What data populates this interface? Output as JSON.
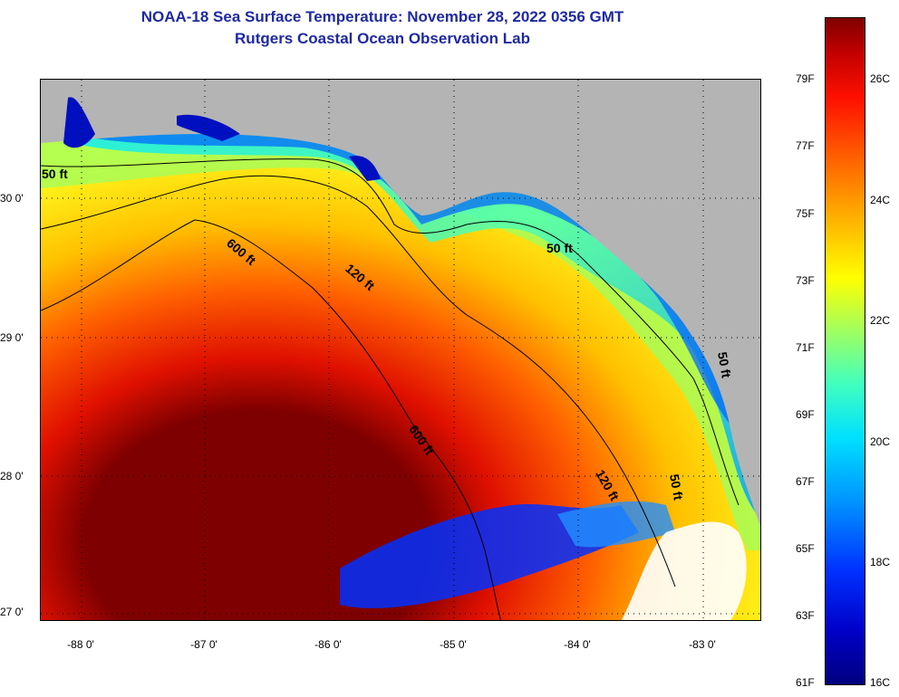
{
  "title": {
    "line1": "NOAA-18 Sea Surface Temperature:  November 28, 2022 0356 GMT",
    "line2": "Rutgers Coastal Ocean Observation Lab"
  },
  "map": {
    "lat_labels": [
      "30 0'",
      "29 0'",
      "28 0'",
      "27 0'"
    ],
    "lon_labels": [
      "-88 0'",
      "-87 0'",
      "-86 0'",
      "-85 0'",
      "-84 0'",
      "-83 0'"
    ],
    "contour_labels": [
      "50 ft",
      "600 ft",
      "120 ft",
      "50 ft",
      "600 ft",
      "120 ft",
      "50 ft",
      "50 ft"
    ],
    "colors": {
      "land": "#b4b4b4",
      "warm_core": "#7f0000",
      "cold_nearshore": "#0010c0",
      "cloud": "#ffffff"
    }
  },
  "colorbar": {
    "fahrenheit_labels": [
      "79F",
      "77F",
      "75F",
      "73F",
      "71F",
      "69F",
      "67F",
      "65F",
      "63F",
      "61F"
    ],
    "celsius_labels": [
      "26C",
      "24C",
      "22C",
      "20C",
      "18C",
      "16C"
    ]
  }
}
